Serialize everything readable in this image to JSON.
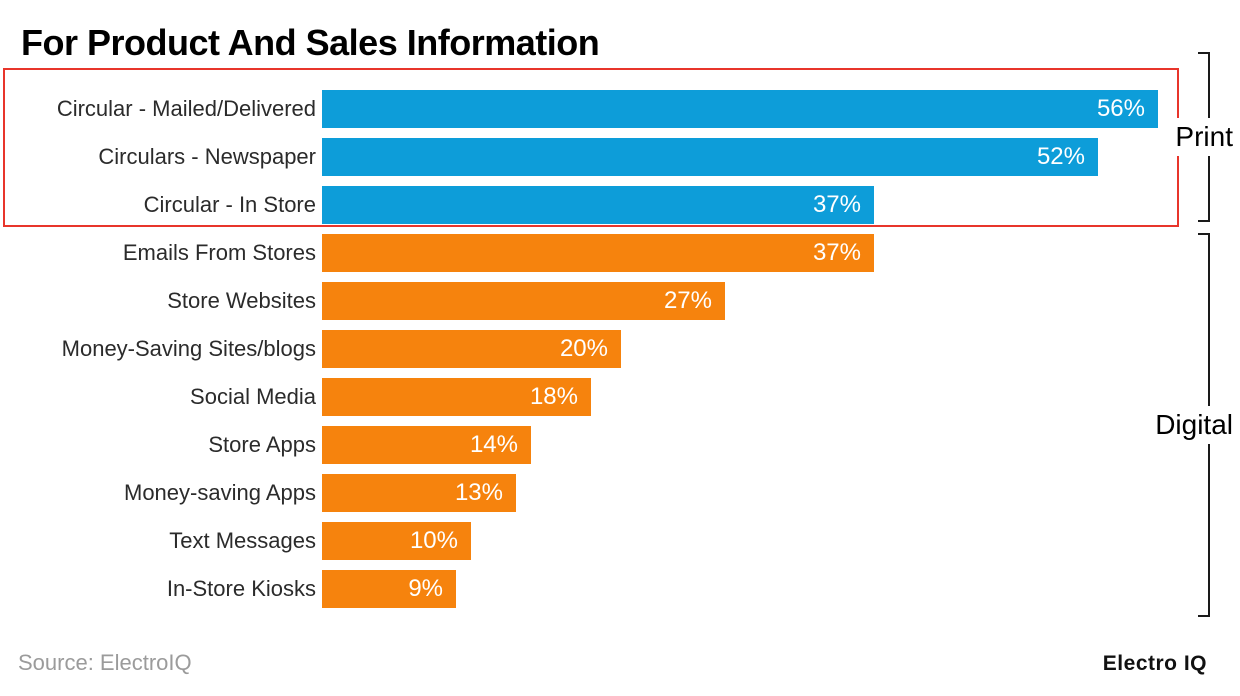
{
  "title": "For Product And Sales Information",
  "source": "Source: ElectroIQ",
  "brand": "Electro IQ",
  "groups": {
    "print_label": "Print",
    "digital_label": "Digital"
  },
  "colors": {
    "print_bar": "#0d9dd9",
    "digital_bar": "#f6830d",
    "highlight_box": "#e8352b",
    "bracket_line": "#1a1a1a",
    "value_text": "#ffffff",
    "source_text": "#9b9b9b"
  },
  "chart_data": {
    "type": "bar",
    "orientation": "horizontal",
    "title": "For Product And Sales Information",
    "xlabel": "",
    "ylabel": "",
    "xlim": [
      0,
      60
    ],
    "grid": false,
    "legend_position": "right-brackets",
    "value_format": "{value}%",
    "value_label_position": "inside-end",
    "categories": [
      "Circular - Mailed/Delivered",
      "Circulars - Newspaper",
      "Circular - In Store",
      "Emails From Stores",
      "Store Websites",
      "Money-Saving Sites/blogs",
      "Social Media",
      "Store Apps",
      "Money-saving Apps",
      "Text Messages",
      "In-Store Kiosks"
    ],
    "values": [
      56,
      52,
      37,
      37,
      27,
      20,
      18,
      14,
      13,
      10,
      9
    ],
    "value_labels": [
      "56%",
      "52%",
      "37%",
      "37%",
      "27%",
      "20%",
      "18%",
      "14%",
      "13%",
      "10%",
      "9%"
    ],
    "point_groups": [
      "Print",
      "Print",
      "Print",
      "Digital",
      "Digital",
      "Digital",
      "Digital",
      "Digital",
      "Digital",
      "Digital",
      "Digital"
    ],
    "series": [
      {
        "name": "Print",
        "color": "#0d9dd9",
        "rows": [
          0,
          1,
          2
        ]
      },
      {
        "name": "Digital",
        "color": "#f6830d",
        "rows": [
          3,
          4,
          5,
          6,
          7,
          8,
          9,
          10
        ]
      }
    ],
    "annotations": {
      "highlight_box": {
        "label": "Print group outline",
        "rows": [
          0,
          1,
          2
        ],
        "color": "#e8352b"
      }
    }
  }
}
